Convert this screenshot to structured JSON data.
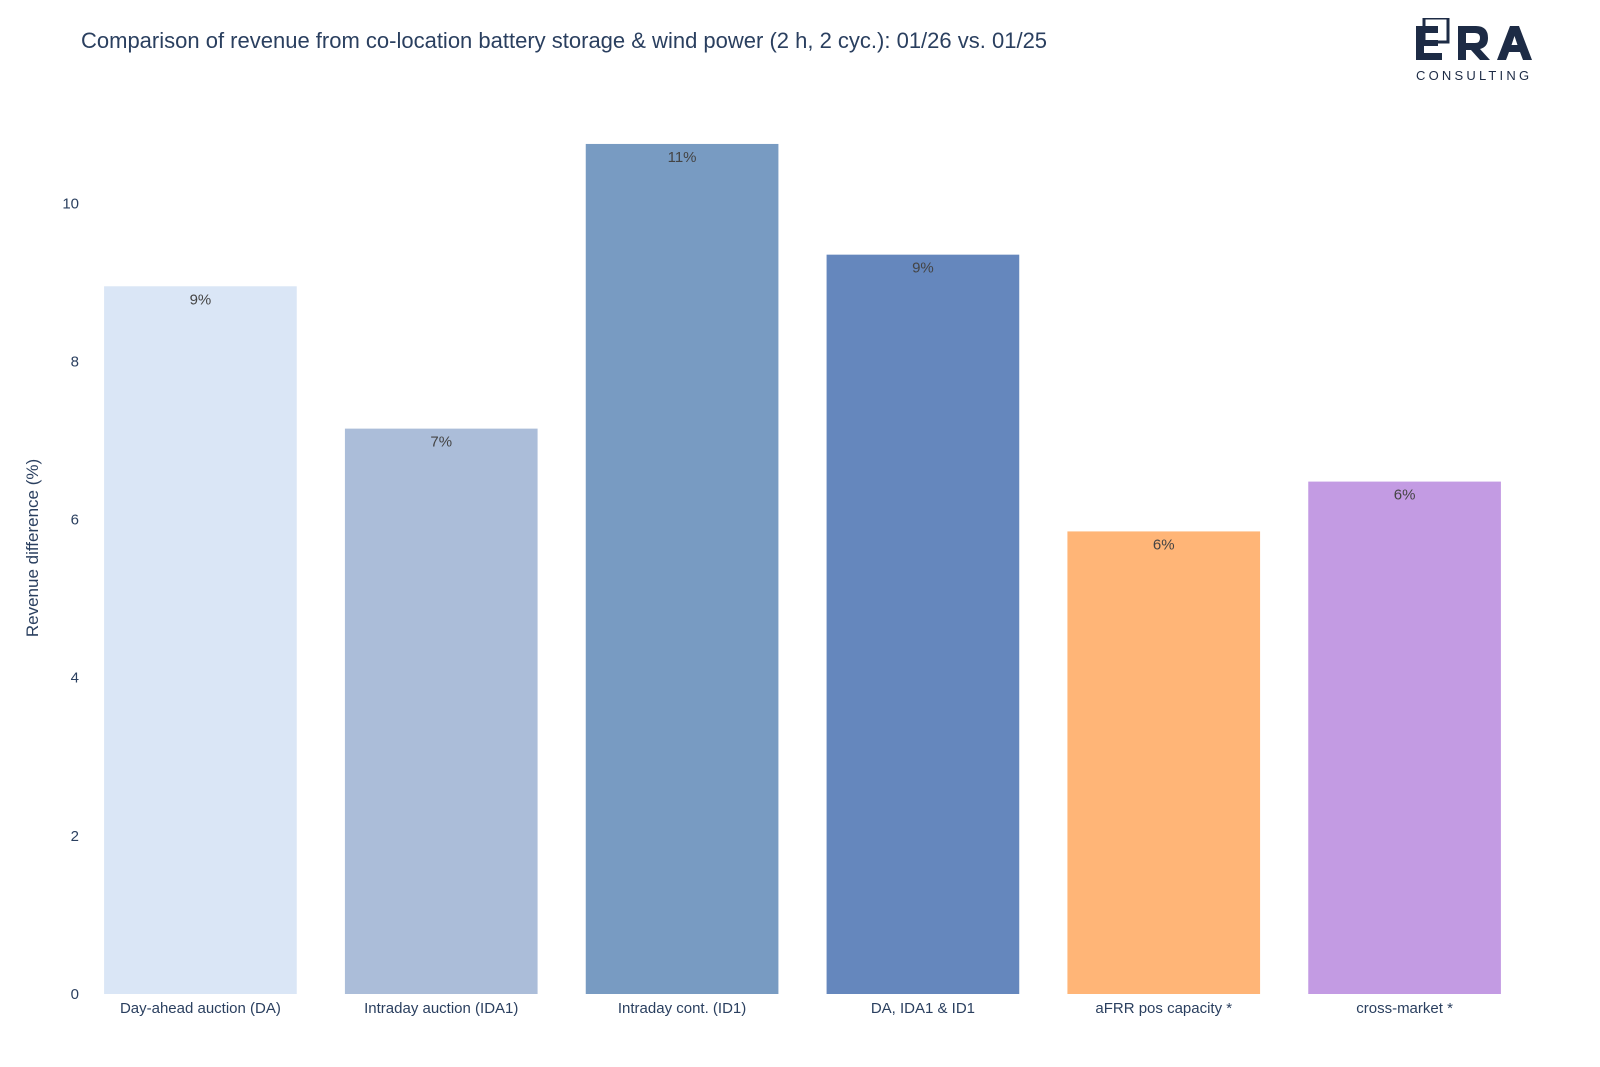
{
  "chart_data": {
    "type": "bar",
    "title": "Comparison of revenue from co-location battery storage & wind power (2 h, 2 cyc.): 01/26 vs. 01/25",
    "xlabel": "",
    "ylabel": "Revenue difference (%)",
    "ylim": [
      0,
      10.8
    ],
    "yticks": [
      0,
      2,
      4,
      6,
      8,
      10
    ],
    "grid": false,
    "categories": [
      "Day-ahead auction (DA)",
      "Intraday auction (IDA1)",
      "Intraday cont. (ID1)",
      "DA, IDA1 & ID1",
      "aFRR pos capacity *",
      "cross-market *"
    ],
    "values": [
      8.95,
      7.15,
      10.75,
      9.35,
      5.85,
      6.48
    ],
    "data_labels": [
      "9%",
      "7%",
      "11%",
      "9%",
      "6%",
      "6%"
    ],
    "colors": [
      "#dae6f6",
      "#abbdd9",
      "#789bc2",
      "#6587bd",
      "#ffb577",
      "#c39be3"
    ]
  },
  "logo": {
    "brand": "ERA",
    "subtitle": "CONSULTING",
    "color": "#1d2b45"
  }
}
